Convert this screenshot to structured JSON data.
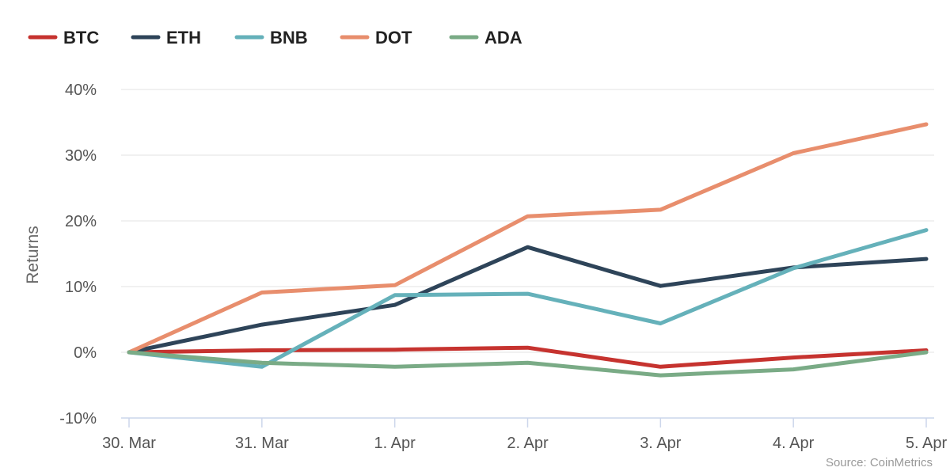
{
  "chart_data": {
    "type": "line",
    "title": "",
    "xlabel": "",
    "ylabel": "Returns",
    "categories": [
      "30. Mar",
      "31. Mar",
      "1. Apr",
      "2. Apr",
      "3. Apr",
      "4. Apr",
      "5. Apr"
    ],
    "yticks": [
      "-10%",
      "0%",
      "10%",
      "20%",
      "30%",
      "40%"
    ],
    "ytick_values": [
      -10,
      0,
      10,
      20,
      30,
      40
    ],
    "ylim": [
      -10,
      40
    ],
    "grid": true,
    "legend_position": "top-left",
    "series": [
      {
        "name": "BTC",
        "color": "#c6332f",
        "values": [
          0,
          0.3,
          0.4,
          0.7,
          -2.2,
          -0.8,
          0.3
        ]
      },
      {
        "name": "ETH",
        "color": "#2e4459",
        "values": [
          0,
          4.2,
          7.2,
          16.0,
          10.1,
          12.9,
          14.2
        ]
      },
      {
        "name": "BNB",
        "color": "#65b1ba",
        "values": [
          0,
          -2.2,
          8.7,
          8.9,
          4.4,
          12.8,
          18.6
        ]
      },
      {
        "name": "DOT",
        "color": "#e88e6d",
        "values": [
          0,
          9.1,
          10.2,
          20.7,
          21.7,
          30.3,
          34.7
        ]
      },
      {
        "name": "ADA",
        "color": "#7aab86",
        "values": [
          0,
          -1.6,
          -2.2,
          -1.6,
          -3.5,
          -2.6,
          0
        ]
      }
    ]
  },
  "source": "Source: CoinMetrics"
}
